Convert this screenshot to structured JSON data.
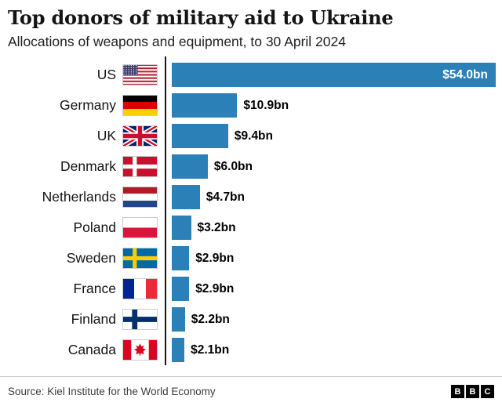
{
  "header": {
    "title": "Top donors of military aid to Ukraine",
    "subtitle": "Allocations of weapons and equipment, to 30 April 2024"
  },
  "footer": {
    "source": "Source: Kiel Institute for the World Economy",
    "logo_letters": [
      "B",
      "B",
      "C"
    ]
  },
  "colors": {
    "bar": "#2c80b8",
    "axis": "#1a1a1a",
    "inside_label": "#ffffff",
    "outside_label": "#000000"
  },
  "chart_data": {
    "type": "bar",
    "orientation": "horizontal",
    "title": "Top donors of military aid to Ukraine",
    "subtitle": "Allocations of weapons and equipment, to 30 April 2024",
    "unit": "US$ billions",
    "xlim": [
      0,
      56
    ],
    "grid": false,
    "legend": "none",
    "categories": [
      "US",
      "Germany",
      "UK",
      "Denmark",
      "Netherlands",
      "Poland",
      "Sweden",
      "France",
      "Finland",
      "Canada"
    ],
    "values": [
      54.0,
      10.9,
      9.4,
      6.0,
      4.7,
      3.2,
      2.9,
      2.9,
      2.2,
      2.1
    ],
    "value_labels": [
      "$54.0bn",
      "$10.9bn",
      "$9.4bn",
      "$6.0bn",
      "$4.7bn",
      "$3.2bn",
      "$2.9bn",
      "$2.9bn",
      "$2.2bn",
      "$2.1bn"
    ],
    "flags": [
      "us",
      "germany",
      "uk",
      "denmark",
      "netherlands",
      "poland",
      "sweden",
      "france",
      "finland",
      "canada"
    ]
  }
}
